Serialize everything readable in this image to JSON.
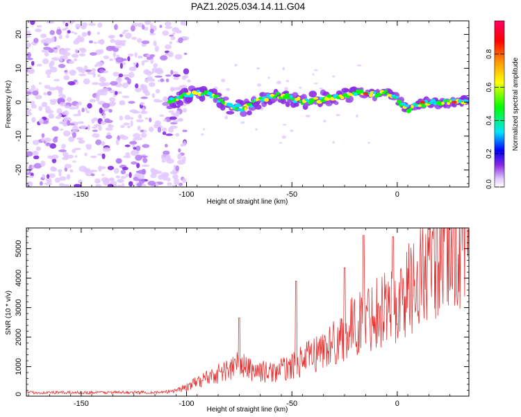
{
  "title": "PAZ1.2025.034.14.11.G04",
  "chart_data": [
    {
      "type": "heatmap",
      "xlabel": "Height of straight line (km)",
      "ylabel": "Frequency (Hz)",
      "xlim": [
        -176,
        34
      ],
      "ylim": [
        -25,
        24
      ],
      "xticks": [
        -150,
        -100,
        -50,
        0
      ],
      "yticks": [
        -20,
        -10,
        0,
        10,
        20
      ],
      "colorbar": {
        "label": "Normalized spectral amplitude",
        "range": [
          0,
          1
        ],
        "ticks": [
          0.0,
          0.2,
          0.4,
          0.6,
          0.8
        ],
        "colors": [
          "#ffffff",
          "#e2c8ff",
          "#8a2be2",
          "#0000ff",
          "#00e5ff",
          "#00ff00",
          "#ffff00",
          "#ff9900",
          "#ff0000",
          "#ff0066"
        ]
      },
      "ridge": {
        "x": [
          -108,
          -100,
          -90,
          -80,
          -72,
          -65,
          -55,
          -45,
          -35,
          -25,
          -15,
          -10,
          -5,
          0,
          5,
          10,
          15,
          20,
          25,
          30,
          34
        ],
        "y": [
          0,
          2,
          3,
          -1,
          -2,
          1,
          2,
          0,
          1,
          2,
          3,
          2,
          3,
          1,
          -2,
          -1,
          0,
          0,
          0,
          0.5,
          0.5
        ],
        "peak_x": [
          -15,
          12,
          27
        ],
        "peak_y": [
          2.5,
          0,
          0
        ]
      },
      "noise_region_x": [
        -176,
        -100
      ]
    },
    {
      "type": "line",
      "xlabel": "Height of straight line (km)",
      "ylabel": "SNR (10 * v/v)",
      "xlim": [
        -176,
        34
      ],
      "ylim": [
        0,
        5700
      ],
      "xticks": [
        -150,
        -100,
        -50,
        0
      ],
      "yticks": [
        0,
        1000,
        2000,
        3000,
        4000,
        5000
      ],
      "line_color": "#e83030",
      "envelope": {
        "x": [
          -176,
          -110,
          -100,
          -90,
          -80,
          -75,
          -70,
          -60,
          -50,
          -40,
          -30,
          -20,
          -15,
          -10,
          -5,
          0,
          5,
          10,
          20,
          30,
          34
        ],
        "y": [
          120,
          130,
          300,
          650,
          900,
          1100,
          900,
          800,
          1000,
          1400,
          1800,
          2400,
          2600,
          2900,
          3100,
          3000,
          3600,
          4000,
          4700,
          5100,
          5300
        ]
      },
      "spikes": {
        "x": [
          -75,
          -48,
          -25,
          -16,
          -2,
          34
        ],
        "y": [
          2650,
          3900,
          4350,
          5450,
          5400,
          5650
        ]
      }
    }
  ]
}
